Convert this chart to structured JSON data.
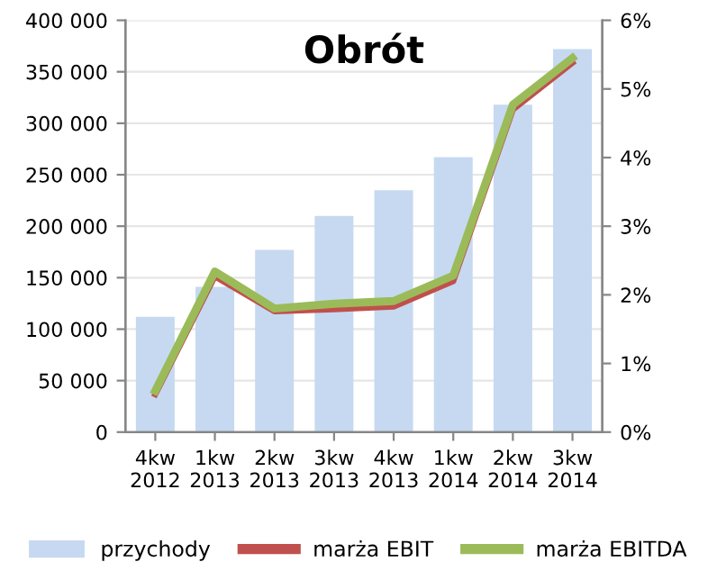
{
  "chart_data": {
    "type": "bar",
    "title": "Obrót",
    "categories": [
      "4kw\n2012",
      "1kw\n2013",
      "2kw\n2013",
      "3kw\n2013",
      "4kw\n2013",
      "1kw\n2014",
      "2kw\n2014",
      "3kw\n2014"
    ],
    "series": [
      {
        "name": "przychody",
        "color": "#c6d9f1",
        "values": [
          112000,
          141000,
          177000,
          210000,
          235000,
          267000,
          318000,
          372000
        ]
      },
      {
        "name": "marża EBIT",
        "type": "line",
        "axis": "y2",
        "color": "#c0504d",
        "values": [
          0.55,
          2.27,
          1.76,
          1.79,
          1.83,
          2.2,
          4.7,
          5.38
        ]
      },
      {
        "name": "marża EBITDA",
        "type": "line",
        "axis": "y2",
        "color": "#9bbb59",
        "values": [
          0.6,
          2.34,
          1.8,
          1.87,
          1.91,
          2.28,
          4.77,
          5.45
        ]
      }
    ],
    "ylim": [
      0,
      400000
    ],
    "yticks": [
      0,
      {
        "value": 50000,
        "label": "50 000"
      },
      {
        "value": 100000,
        "label": "100 000"
      },
      {
        "value": 150000,
        "label": "150 000"
      },
      {
        "value": 200000,
        "label": "200 000"
      },
      {
        "value": 250000,
        "label": "250 000"
      },
      {
        "value": 300000,
        "label": "300 000"
      },
      {
        "value": 350000,
        "label": "350 000"
      },
      {
        "value": 400000,
        "label": "400 000"
      }
    ],
    "y2lim": [
      0,
      6
    ],
    "y2ticks": [
      {
        "value": 0,
        "label": "0%"
      },
      {
        "value": 1,
        "label": "1%"
      },
      {
        "value": 2,
        "label": "2%"
      },
      {
        "value": 3,
        "label": "3%"
      },
      {
        "value": 4,
        "label": "4%"
      },
      {
        "value": 5,
        "label": "5%"
      },
      {
        "value": 6,
        "label": "6%"
      }
    ],
    "grid": "y",
    "legend": "bottom"
  }
}
